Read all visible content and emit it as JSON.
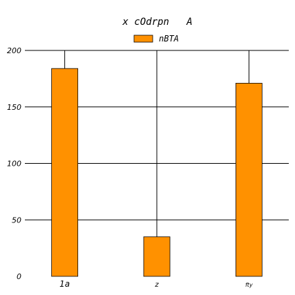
{
  "chart_data": {
    "type": "bar",
    "title": "x cOdrpn   A",
    "categories": [
      "1a",
      "z",
      "fty"
    ],
    "series": [
      {
        "name": "nBTA",
        "values": [
          184,
          35,
          171
        ]
      }
    ],
    "xlabel": "",
    "ylabel": "",
    "ylim": [
      0,
      200
    ],
    "yticks": [
      0,
      50,
      100,
      150,
      200
    ],
    "grid": true,
    "legend": "top-center",
    "colors": {
      "bar": "#ff9100",
      "edge": "#000000",
      "grid": "#000000"
    }
  }
}
